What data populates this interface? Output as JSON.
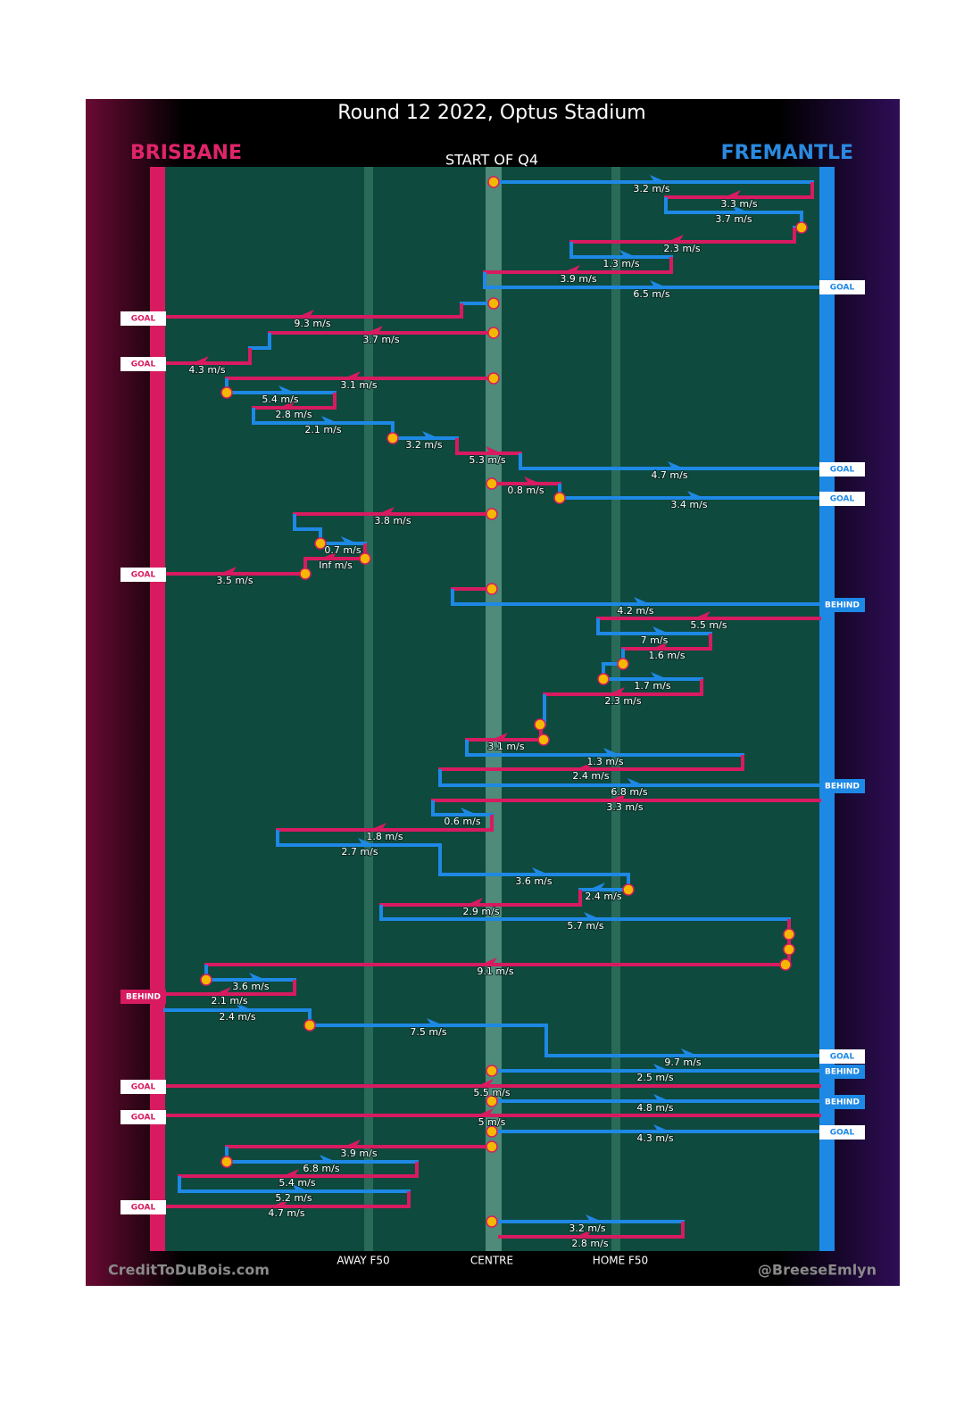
{
  "title": "Round 12 2022, Optus Stadium",
  "teams": {
    "home_left": "BRISBANE",
    "away_right": "FREMANTLE"
  },
  "period": "START OF Q4",
  "zones": [
    "AWAY F50",
    "CENTRE",
    "HOME F50"
  ],
  "credits": {
    "left": "CreditToDuBois.com",
    "right": "@BreeseEmlyn"
  },
  "speeds": [
    "3.2 m/s",
    "3.3 m/s",
    "3.7 m/s",
    "2.3 m/s",
    "1.3 m/s",
    "3.9 m/s",
    "6.5 m/s",
    "9.3 m/s",
    "3.7 m/s",
    "4.3 m/s",
    "3.1 m/s",
    "5.4 m/s",
    "2.8 m/s",
    "2.1 m/s",
    "3.2 m/s",
    "5.3 m/s",
    "4.7 m/s",
    "0.8 m/s",
    "3.4 m/s",
    "3.8 m/s",
    "0.7 m/s",
    "Inf m/s",
    "3.5 m/s",
    "4.2 m/s",
    "5.5 m/s",
    "7 m/s",
    "1.6 m/s",
    "1.7 m/s",
    "2.3 m/s",
    "3.1 m/s",
    "1.3 m/s",
    "2.4 m/s",
    "6.8 m/s",
    "3.3 m/s",
    "0.6 m/s",
    "1.8 m/s",
    "2.7 m/s",
    "3.6 m/s",
    "2.4 m/s",
    "2.9 m/s",
    "5.7 m/s",
    "9.1 m/s",
    "3.6 m/s",
    "2.1 m/s",
    "2.4 m/s",
    "7.5 m/s",
    "9.7 m/s",
    "2.5 m/s",
    "5.5 m/s",
    "4.8 m/s",
    "5 m/s",
    "4.3 m/s",
    "3.9 m/s",
    "6.8 m/s",
    "5.4 m/s",
    "5.2 m/s",
    "4.7 m/s",
    "3.2 m/s",
    "2.8 m/s"
  ],
  "outcomes": [
    "GOAL",
    "GOAL",
    "GOAL",
    "GOAL",
    "GOAL",
    "GOAL",
    "BEHIND",
    "BEHIND",
    "BEHIND",
    "GOAL",
    "BEHIND",
    "GOAL",
    "BEHIND",
    "GOAL",
    "GOAL",
    "GOAL"
  ]
}
